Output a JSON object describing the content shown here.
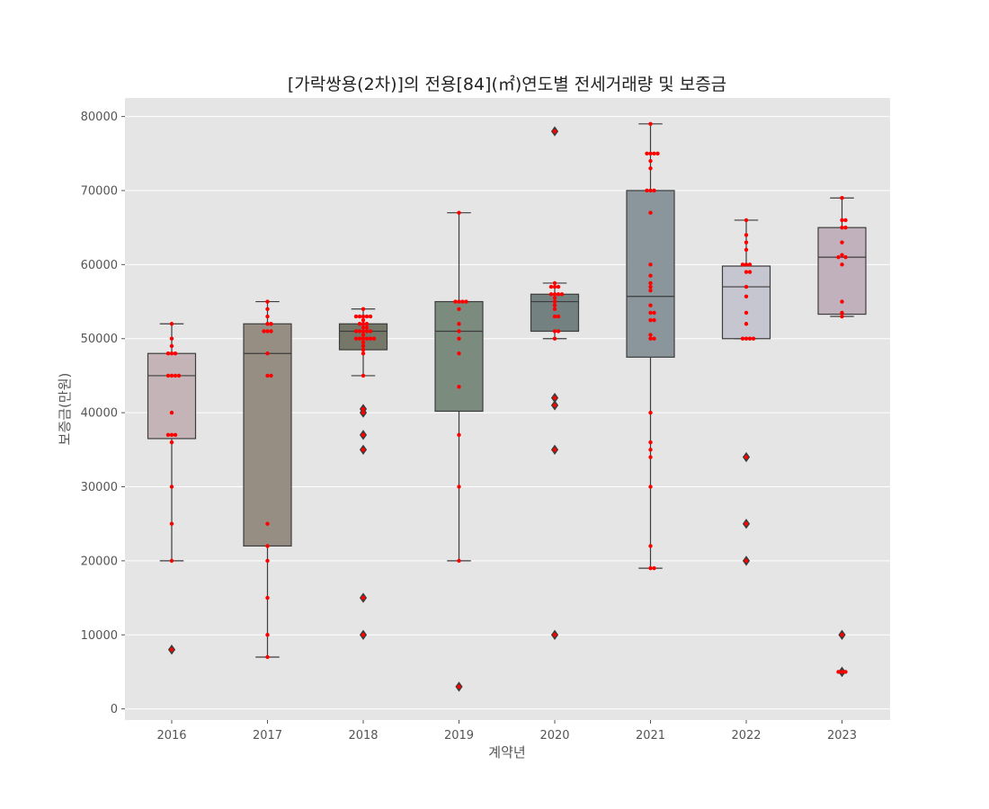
{
  "chart_data": {
    "type": "box",
    "title": "[가락쌍용(2차)]의 전용[84](㎡)연도별 전세거래량 및 보증금",
    "xlabel": "계약년",
    "ylabel": "보증금(만원)",
    "categories": [
      "2016",
      "2017",
      "2018",
      "2019",
      "2020",
      "2021",
      "2022",
      "2023"
    ],
    "ylim": [
      -1500,
      82500
    ],
    "yticks": [
      0,
      10000,
      20000,
      30000,
      40000,
      50000,
      60000,
      70000,
      80000
    ],
    "grid": true,
    "box_colors": [
      "#c4b4b8",
      "#968e82",
      "#757768",
      "#7b8b7e",
      "#738181",
      "#8a969b",
      "#c6c6d0",
      "#c1b1bc"
    ],
    "point_color": "#ff0000",
    "boxes": [
      {
        "year": "2016",
        "q1": 36500,
        "median": 45000,
        "q3": 48000,
        "whisker_low": 20000,
        "whisker_high": 52000,
        "outliers": [
          8000
        ],
        "points": [
          52000,
          50000,
          49000,
          48000,
          48000,
          48000,
          45000,
          45000,
          45000,
          45000,
          40000,
          37000,
          37000,
          37000,
          36000,
          30000,
          25000,
          20000,
          8000
        ]
      },
      {
        "year": "2017",
        "q1": 22000,
        "median": 48000,
        "q3": 52000,
        "whisker_low": 7000,
        "whisker_high": 55000,
        "outliers": [],
        "points": [
          55000,
          54000,
          53000,
          52000,
          52000,
          51000,
          51000,
          51000,
          48000,
          45000,
          45000,
          25000,
          22000,
          20000,
          15000,
          10000,
          7000
        ]
      },
      {
        "year": "2018",
        "q1": 48500,
        "median": 51000,
        "q3": 52000,
        "whisker_low": 45000,
        "whisker_high": 54000,
        "outliers": [
          40500,
          40000,
          37000,
          35000,
          15000,
          10000
        ],
        "points": [
          54000,
          53000,
          53000,
          53000,
          53000,
          53000,
          52500,
          52000,
          52000,
          52000,
          51500,
          51500,
          51000,
          51000,
          51000,
          51000,
          51000,
          50500,
          50000,
          50000,
          50000,
          50000,
          50000,
          50000,
          49500,
          49000,
          48500,
          48000,
          45000,
          40500,
          40000,
          37000,
          35000,
          15000,
          10000
        ]
      },
      {
        "year": "2019",
        "q1": 40200,
        "median": 51000,
        "q3": 55000,
        "whisker_low": 20000,
        "whisker_high": 67000,
        "outliers": [
          3000
        ],
        "points": [
          67000,
          55000,
          55000,
          55000,
          55000,
          54000,
          52000,
          51000,
          50000,
          48000,
          43500,
          37000,
          30000,
          20000,
          3000
        ]
      },
      {
        "year": "2020",
        "q1": 51000,
        "median": 55000,
        "q3": 56000,
        "whisker_low": 50000,
        "whisker_high": 57500,
        "outliers": [
          78000,
          42000,
          41000,
          35000,
          10000
        ],
        "points": [
          78000,
          57500,
          57000,
          57000,
          57000,
          56000,
          56000,
          56000,
          56000,
          55500,
          55000,
          54500,
          54000,
          53000,
          53000,
          51000,
          51000,
          50000,
          42000,
          41000,
          35000,
          10000
        ]
      },
      {
        "year": "2021",
        "q1": 47500,
        "median": 55700,
        "q3": 70000,
        "whisker_low": 19000,
        "whisker_high": 79000,
        "outliers": [],
        "points": [
          79000,
          75000,
          75000,
          75000,
          75000,
          74000,
          73000,
          70000,
          70000,
          70000,
          67000,
          60000,
          58500,
          57500,
          57000,
          56500,
          54500,
          53500,
          53500,
          52500,
          52500,
          50500,
          50000,
          50000,
          40000,
          36000,
          35000,
          34000,
          30000,
          22000,
          19000,
          19000
        ]
      },
      {
        "year": "2022",
        "q1": 50000,
        "median": 57000,
        "q3": 59800,
        "whisker_low": 50000,
        "whisker_high": 66000,
        "outliers": [
          34000,
          25000,
          20000
        ],
        "points": [
          66000,
          64000,
          63000,
          62000,
          60000,
          60000,
          60000,
          59000,
          59000,
          57000,
          55700,
          53500,
          52000,
          50000,
          50000,
          50000,
          50000,
          34000,
          25000,
          20000
        ]
      },
      {
        "year": "2023",
        "q1": 53300,
        "median": 61000,
        "q3": 65000,
        "whisker_low": 53000,
        "whisker_high": 69000,
        "outliers": [
          10000,
          5000,
          5000,
          5000
        ],
        "points": [
          69000,
          66000,
          66000,
          65000,
          65000,
          63000,
          61300,
          61000,
          61000,
          60000,
          55000,
          53500,
          53000,
          10000,
          5000,
          5000,
          5000
        ]
      }
    ]
  }
}
